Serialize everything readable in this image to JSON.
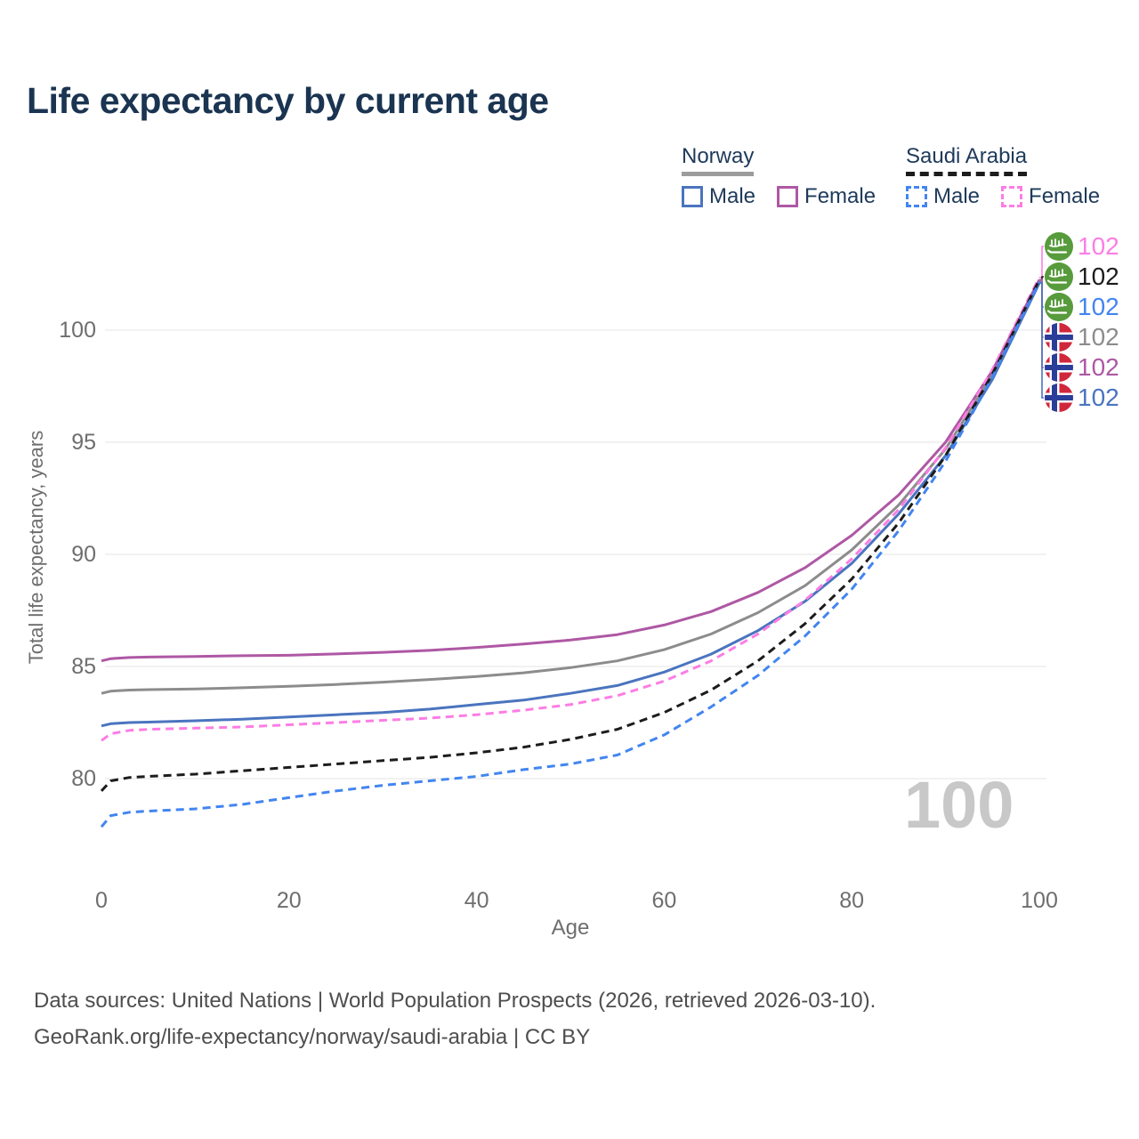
{
  "title": "Life expectancy by current age",
  "legend": {
    "norway": {
      "label": "Norway",
      "male": "Male",
      "female": "Female"
    },
    "saudi": {
      "label": "Saudi Arabia",
      "male": "Male",
      "female": "Female"
    }
  },
  "watermark": "100",
  "footer": {
    "line1": "Data sources: United Nations | World Population Prospects (2026, retrieved 2026-03-10).",
    "line2": "GeoRank.org/life-expectancy/norway/saudi-arabia | CC BY"
  },
  "colors": {
    "title_text": "#1a3451",
    "legend_text": "#1e3a5a",
    "norway_underline": "#9c9c9c",
    "saudi_underline": "#1c1c1c",
    "axis_text": "#6e6e6e",
    "gridline": "#e9e9e9",
    "watermark": "#c8c8c8",
    "footer_text": "#4e4e4e",
    "norway_flag_red": "#d0273c",
    "norway_flag_blue": "#2a3d99",
    "saudi_flag_green": "#579b3c"
  },
  "chart_data": {
    "type": "line",
    "title": "Life expectancy by current age",
    "xlabel": "Age",
    "ylabel": "Total life expectancy, years",
    "xlim": [
      0,
      100
    ],
    "ylim": [
      77,
      103
    ],
    "x_ticks": [
      0,
      20,
      40,
      60,
      80,
      100
    ],
    "y_ticks": [
      80,
      85,
      90,
      95,
      100
    ],
    "grid": "horizontal",
    "legend_position": "top-right",
    "x": [
      0,
      1,
      3,
      5,
      10,
      15,
      20,
      25,
      30,
      35,
      40,
      45,
      50,
      55,
      60,
      65,
      70,
      75,
      80,
      85,
      90,
      95,
      100
    ],
    "series": [
      {
        "key": "norway-both",
        "name": "Norway (both sexes)",
        "country": "norway",
        "sex": "both",
        "style": "solid",
        "color": "#8c8c8c",
        "end_label": "102",
        "annotation_row": 3,
        "values": [
          83.8,
          83.9,
          83.95,
          83.97,
          84.0,
          84.05,
          84.12,
          84.2,
          84.3,
          84.42,
          84.55,
          84.72,
          84.95,
          85.25,
          85.75,
          86.45,
          87.4,
          88.6,
          90.2,
          92.2,
          94.7,
          98.0,
          102.2
        ]
      },
      {
        "key": "norway-female",
        "name": "Norway Female",
        "country": "norway",
        "sex": "female",
        "style": "solid",
        "color": "#ae58a4",
        "end_label": "102",
        "annotation_row": 4,
        "values": [
          85.25,
          85.35,
          85.4,
          85.42,
          85.45,
          85.48,
          85.5,
          85.56,
          85.63,
          85.72,
          85.85,
          86.0,
          86.18,
          86.42,
          86.85,
          87.45,
          88.3,
          89.4,
          90.85,
          92.65,
          95.0,
          98.2,
          102.25
        ]
      },
      {
        "key": "norway-male",
        "name": "Norway Male",
        "country": "norway",
        "sex": "male",
        "style": "solid",
        "color": "#4a74bf",
        "end_label": "102",
        "annotation_row": 5,
        "values": [
          82.35,
          82.45,
          82.5,
          82.52,
          82.58,
          82.65,
          82.75,
          82.85,
          82.95,
          83.1,
          83.3,
          83.5,
          83.8,
          84.15,
          84.75,
          85.55,
          86.6,
          87.9,
          89.6,
          91.8,
          94.4,
          97.8,
          102.1
        ]
      },
      {
        "key": "saudi-arabia-female",
        "name": "Saudi Arabia Female",
        "country": "saudi-arabia",
        "sex": "female",
        "style": "dashed",
        "color": "#fc7de4",
        "end_label": "102",
        "annotation_row": 0,
        "values": [
          81.7,
          82.0,
          82.15,
          82.2,
          82.25,
          82.3,
          82.4,
          82.5,
          82.6,
          82.7,
          82.85,
          83.05,
          83.3,
          83.7,
          84.35,
          85.25,
          86.45,
          87.95,
          89.8,
          92.0,
          94.75,
          98.25,
          102.35
        ]
      },
      {
        "key": "saudi-arabia-both",
        "name": "Saudi Arabia (both sexes)",
        "country": "saudi-arabia",
        "sex": "both",
        "style": "dashed",
        "color": "#1c1c1c",
        "end_label": "102",
        "annotation_row": 1,
        "values": [
          79.45,
          79.9,
          80.05,
          80.1,
          80.2,
          80.35,
          80.5,
          80.65,
          80.8,
          80.95,
          81.15,
          81.4,
          81.75,
          82.2,
          82.95,
          83.95,
          85.25,
          86.9,
          88.9,
          91.4,
          94.4,
          98.05,
          102.25
        ]
      },
      {
        "key": "saudi-arabia-male",
        "name": "Saudi Arabia Male",
        "country": "saudi-arabia",
        "sex": "male",
        "style": "dashed",
        "color": "#4285f0",
        "end_label": "102",
        "annotation_row": 2,
        "values": [
          77.85,
          78.35,
          78.5,
          78.55,
          78.65,
          78.85,
          79.15,
          79.45,
          79.7,
          79.9,
          80.1,
          80.4,
          80.65,
          81.05,
          81.95,
          83.2,
          84.6,
          86.35,
          88.45,
          91.05,
          94.15,
          97.9,
          102.15
        ]
      }
    ]
  }
}
